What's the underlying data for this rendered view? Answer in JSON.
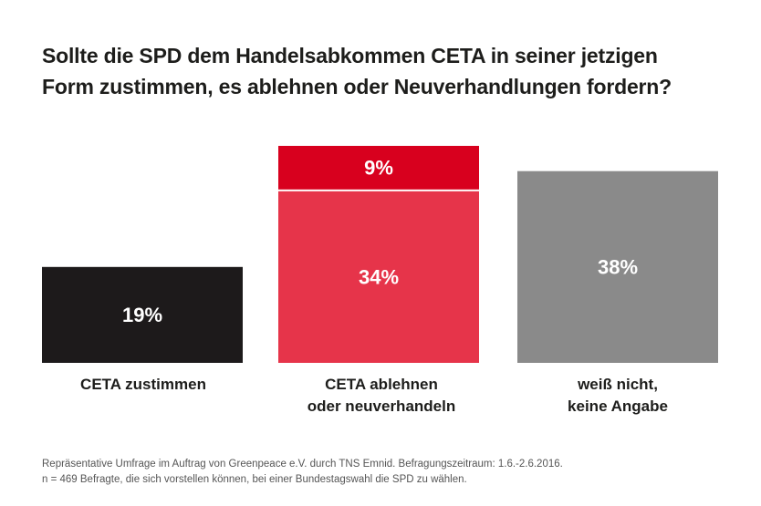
{
  "title_lines": [
    "Sollte die SPD dem Handelsabkommen CETA in seiner jetzigen",
    "Form zustimmen, es ablehnen oder Neuverhandlungen fordern?"
  ],
  "chart_data": {
    "type": "bar",
    "stacked": true,
    "categories": [
      [
        "CETA zustimmen"
      ],
      [
        "CETA ablehnen",
        "oder neuverhandeln"
      ],
      [
        "weiß nicht,",
        "keine Angabe"
      ]
    ],
    "bars": [
      {
        "segments": [
          {
            "value": 19,
            "label": "19%",
            "color": "#1d1a1b"
          }
        ]
      },
      {
        "segments": [
          {
            "value": 34,
            "label": "34%",
            "color": "#e6344a"
          },
          {
            "value": 9,
            "label": "9%",
            "color": "#d8001e"
          }
        ]
      },
      {
        "segments": [
          {
            "value": 38,
            "label": "38%",
            "color": "#8a8a8a"
          }
        ]
      }
    ],
    "ylim": [
      0,
      43
    ]
  },
  "footnote_lines": [
    "Repräsentative Umfrage im Auftrag von Greenpeace e.V. durch TNS Emnid. Befragungszeitraum: 1.6.-2.6.2016.",
    "n = 469 Befragte, die sich vorstellen können, bei einer Bundestagswahl die SPD zu wählen."
  ]
}
